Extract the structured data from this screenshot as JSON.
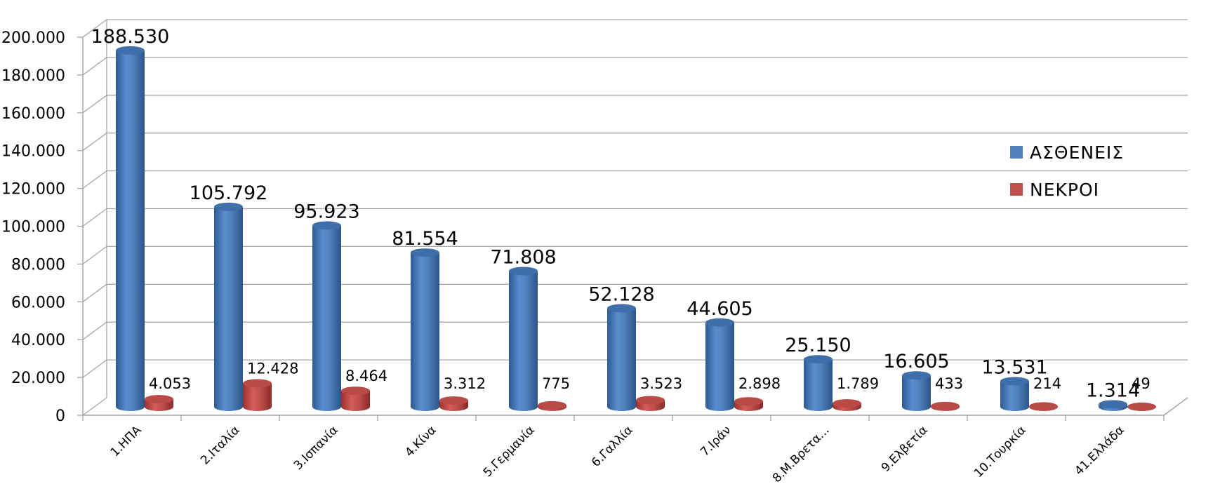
{
  "chart_data": {
    "type": "bar",
    "title": "",
    "xlabel": "",
    "ylabel": "",
    "ylim": [
      0,
      200000
    ],
    "yticks": [
      "0",
      "20.000",
      "40.000",
      "60.000",
      "80.000",
      "100.000",
      "120.000",
      "140.000",
      "160.000",
      "180.000",
      "200.000"
    ],
    "grid": true,
    "style": "3d-cylinder",
    "legend_position": "right",
    "categories": [
      "1.ΗΠΑ",
      "2.Ιταλία",
      "3.Ισπανία",
      "4.Κίνα",
      "5.Γερμανία",
      "6.Γαλλία",
      "7.Ιράν",
      "8.Μ.Βρετα...",
      "9.Ελβετία",
      "10.Τουρκία",
      "41.Ελλάδα"
    ],
    "series": [
      {
        "name": "ΑΣΘΕΝΕΙΣ",
        "color": "#4f81bd",
        "values": [
          188530,
          105792,
          95923,
          81554,
          71808,
          52128,
          44605,
          25150,
          16605,
          13531,
          1314
        ],
        "labels": [
          "188.530",
          "105.792",
          "95.923",
          "81.554",
          "71.808",
          "52.128",
          "44.605",
          "25.150",
          "16.605",
          "13.531",
          "1.314"
        ]
      },
      {
        "name": "ΝΕΚΡΟΙ",
        "color": "#c0504d",
        "values": [
          4053,
          12428,
          8464,
          3312,
          775,
          3523,
          2898,
          1789,
          433,
          214,
          49
        ],
        "labels": [
          "4.053",
          "12.428",
          "8.464",
          "3.312",
          "775",
          "3.523",
          "2.898",
          "1.789",
          "433",
          "214",
          "49"
        ]
      }
    ]
  },
  "legend": {
    "items": [
      {
        "label": "ΑΣΘΕΝΕΙΣ",
        "color": "#4f81bd"
      },
      {
        "label": "ΝΕΚΡΟΙ",
        "color": "#c0504d"
      }
    ]
  }
}
